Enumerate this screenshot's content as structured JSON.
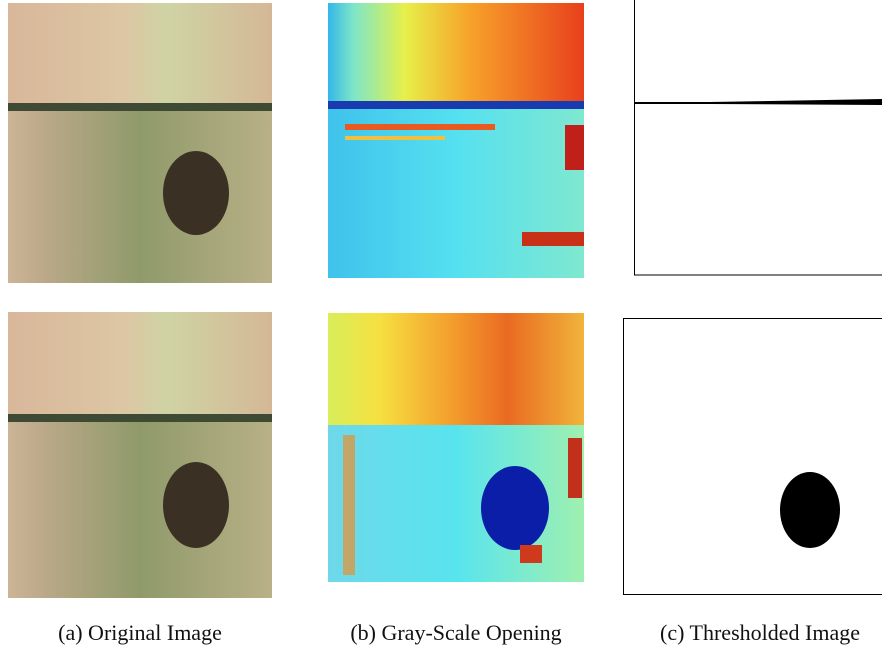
{
  "captions": [
    "(a) Original Image",
    "(b) Gray-Scale Opening",
    "(c) Thresholded Image"
  ]
}
